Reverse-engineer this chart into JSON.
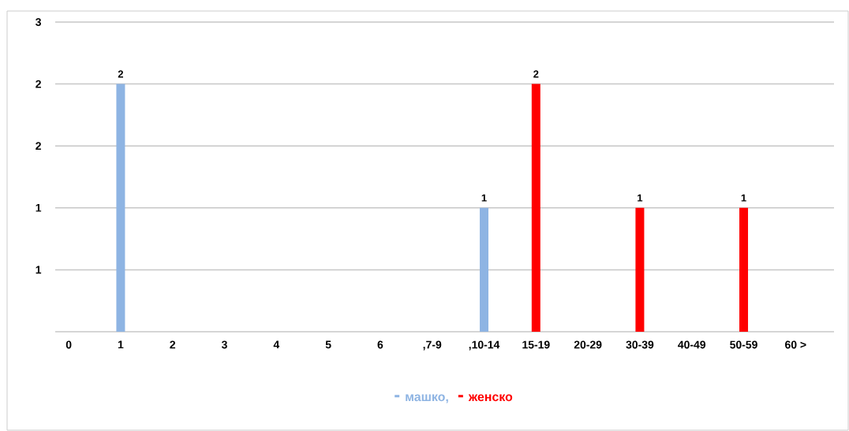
{
  "chart_data": {
    "type": "bar",
    "categories": [
      "0",
      "1",
      "2",
      "3",
      "4",
      "5",
      "6",
      ",7-9",
      ",10-14",
      "15-19",
      "20-29",
      "30-39",
      "40-49",
      "50-59",
      "60 >"
    ],
    "series": [
      {
        "name": "машко,",
        "color": "#8eb4e3",
        "values": [
          0,
          2,
          0,
          0,
          0,
          0,
          0,
          0,
          1,
          0,
          0,
          0,
          0,
          0,
          0
        ],
        "value_labels": [
          null,
          "2",
          null,
          null,
          null,
          null,
          null,
          null,
          "1",
          null,
          null,
          null,
          null,
          null,
          null
        ]
      },
      {
        "name": "женско",
        "color": "#ff0000",
        "values": [
          0,
          0,
          0,
          0,
          0,
          0,
          0,
          0,
          0,
          2,
          0,
          1,
          0,
          1,
          0
        ],
        "value_labels": [
          null,
          null,
          null,
          null,
          null,
          null,
          null,
          null,
          null,
          "2",
          null,
          "1",
          null,
          "1",
          null
        ]
      }
    ],
    "ylim": [
      0,
      2.5
    ],
    "yticks": [
      {
        "value": 0.5,
        "label": "1"
      },
      {
        "value": 1,
        "label": "1"
      },
      {
        "value": 1.5,
        "label": "2"
      },
      {
        "value": 2,
        "label": "2"
      },
      {
        "value": 2.5,
        "label": "3"
      }
    ],
    "grid": "y",
    "legend": "bottom"
  }
}
